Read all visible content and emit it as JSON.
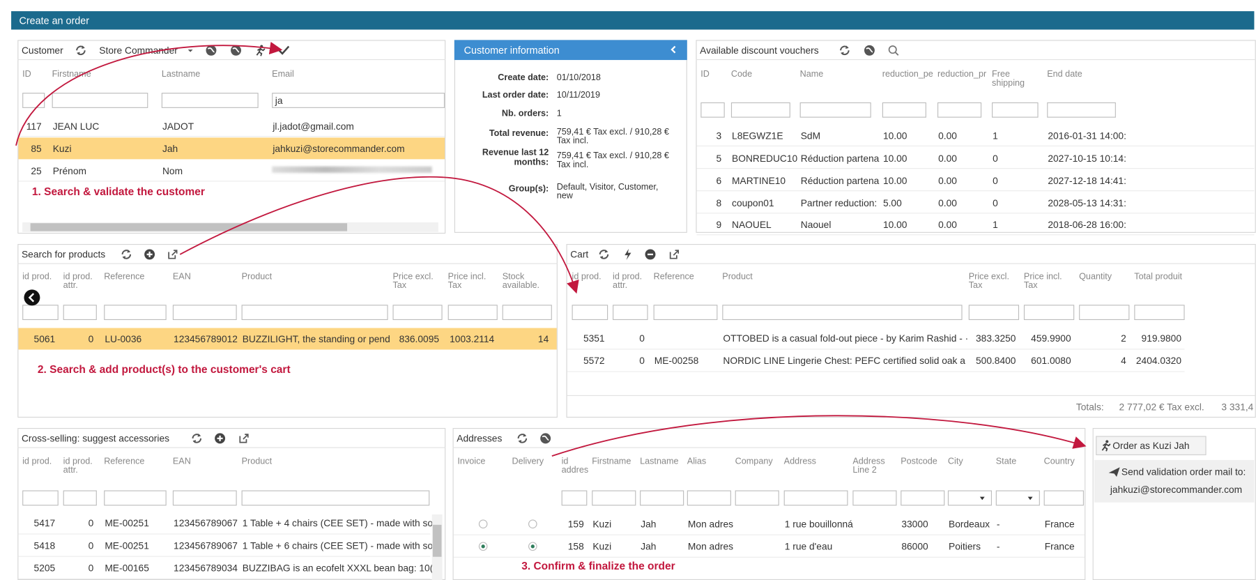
{
  "header": {
    "title": "Create an order"
  },
  "customer": {
    "title": "Customer",
    "store": "Store Commander",
    "columns": [
      "ID",
      "Firstname",
      "Lastname",
      "Email"
    ],
    "filter": "ja",
    "rows": [
      [
        "117",
        "JEAN LUC",
        "JADOT",
        "jl.jadot@gmail.com"
      ],
      [
        "85",
        "Kuzi",
        "Jah",
        "jahkuzi@storecommander.com"
      ],
      [
        "25",
        "Prénom",
        "Nom"
      ]
    ],
    "selected_row": 1,
    "annotation": "1. Search & validate the customer"
  },
  "customer_info": {
    "title": "Customer information",
    "fields": [
      {
        "label": "Create date:",
        "value": "01/10/2018"
      },
      {
        "label": "Last order date:",
        "value": "10/11/2019"
      },
      {
        "label": "Nb. orders:",
        "value": "1"
      },
      {
        "label": "Total revenue:",
        "value": "759,41 € Tax excl. / 910,28 € Tax incl."
      },
      {
        "label": "Revenue last 12 months:",
        "value": "759,41 € Tax excl. / 910,28 € Tax incl."
      },
      {
        "label": "Group(s):",
        "value": "Default, Visitor, Customer, new"
      }
    ]
  },
  "vouchers": {
    "title": "Available discount vouchers",
    "columns": [
      "ID",
      "Code",
      "Name",
      "reduction_pe",
      "reduction_pr",
      "Free shipping",
      "End date"
    ],
    "rows": [
      [
        "3",
        "L8EGWZ1E",
        "SdM",
        "10.00",
        "0.00",
        "1",
        "2016-01-31 14:00:"
      ],
      [
        "5",
        "BONREDUC10",
        "Réduction partena",
        "10.00",
        "0.00",
        "0",
        "2027-10-15 10:14:"
      ],
      [
        "6",
        "MARTINE10",
        "Réduction partena",
        "10.00",
        "0.00",
        "0",
        "2027-12-18 14:41:"
      ],
      [
        "8",
        "coupon01",
        "Partner reduction:",
        "5.00",
        "0.00",
        "0",
        "2028-05-13 14:31:"
      ],
      [
        "9",
        "NAOUEL",
        "Naouel",
        "10.00",
        "0.00",
        "1",
        "2018-06-28 16:00:"
      ]
    ]
  },
  "products": {
    "title": "Search for products",
    "columns": [
      "id prod.",
      "id prod. attr.",
      "Reference",
      "EAN",
      "Product",
      "Price excl. Tax",
      "Price incl. Tax",
      "Stock available."
    ],
    "rows": [
      [
        "5061",
        "0",
        "LU-0036",
        "123456789012",
        "BUZZILIGHT, the standing or pend",
        "836.0095",
        "1003.2114",
        "14"
      ]
    ],
    "selected_row": 0,
    "annotation": "2. Search & add product(s) to the customer's cart"
  },
  "cart": {
    "title": "Cart",
    "columns": [
      "id prod.",
      "id prod. attr.",
      "Reference",
      "Product",
      "Price excl. Tax",
      "Price incl. Tax",
      "Quantity",
      "Total produit"
    ],
    "rows": [
      [
        "5351",
        "0",
        null,
        "OTTOBED is a casual fold-out piece - by Karim Rashid - ·",
        "383.3250",
        "459.9900",
        "2",
        "919.9800"
      ],
      [
        "5572",
        "0",
        "ME-00258",
        "NORDIC LINE Lingerie Chest: PEFC certified solid oak a",
        "500.8400",
        "601.0080",
        "4",
        "2404.0320"
      ]
    ],
    "totals": {
      "label": "Totals:",
      "excl": "2 777,02 € Tax excl.",
      "incl": "3 331,4"
    }
  },
  "cross_selling": {
    "title": "Cross-selling: suggest accessories",
    "columns": [
      "id prod.",
      "id prod. attr.",
      "Reference",
      "EAN",
      "Product"
    ],
    "rows": [
      [
        "5417",
        "0",
        "ME-00251",
        "123456789067",
        "1 Table + 4 chairs (CEE SET) - made with so"
      ],
      [
        "5418",
        "0",
        "ME-00251",
        "123456789067",
        "1 Table + 6 chairs (CEE SET) - made with so"
      ],
      [
        "5205",
        "0",
        "ME-00165",
        "123456789034",
        "BUZZIBAG is an ecofelt XXXL bean bag: 10("
      ]
    ]
  },
  "addresses": {
    "title": "Addresses",
    "columns": [
      "Invoice",
      "Delivery",
      "id addres",
      "Firstname",
      "Lastname",
      "Alias",
      "Company",
      "Address",
      "Address Line 2",
      "Postcode",
      "City",
      "State",
      "Country"
    ],
    "rows": [
      [
        "159",
        "Kuzi",
        "Jah",
        "Mon adres",
        null,
        "1 rue bouillonná",
        null,
        "33000",
        "Bordeaux",
        "-",
        "France"
      ],
      [
        "158",
        "Kuzi",
        "Jah",
        "Mon adres",
        null,
        "1 rue d'eau",
        null,
        "86000",
        "Poitiers",
        "-",
        "France"
      ]
    ],
    "selected_row": 1,
    "annotation": "3. Confirm & finalize the order"
  },
  "actions": {
    "order_button": "Order as Kuzi Jah",
    "mail_label": "Send validation order mail to:",
    "mail": "jahkuzi@storecommander.com"
  }
}
